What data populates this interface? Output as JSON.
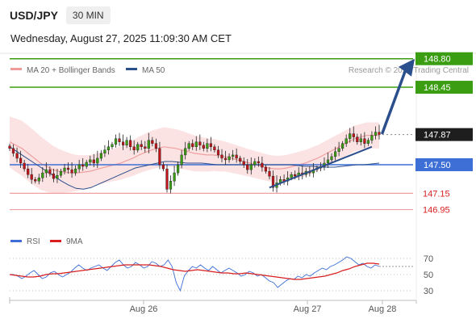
{
  "header": {
    "pair": "USD/JPY",
    "timeframe": "30 MIN",
    "datetime": "Wednesday, August 27, 2025 11:09:30 AM CET"
  },
  "legend": {
    "bollinger_label": "MA 20 + Bollinger Bands",
    "ma50_label": "MA 50",
    "copyright": "Research © 2025 Trading Central",
    "rsi_label": "RSI",
    "rsi_ma_label": "9MA"
  },
  "colors": {
    "green": "#3a9d12",
    "blue": "#3d6fd6",
    "navy": "#2a4f8c",
    "red": "#d81e1e",
    "light_red": "#f0a0a0",
    "band_fill": "#fbd9d9",
    "candle_up": "#3a9d12",
    "candle_down": "#c0141a"
  },
  "chart_data": [
    {
      "type": "candlestick",
      "title": "USD/JPY 30 MIN",
      "xlabel": "",
      "ylabel": "",
      "x_ticks": [
        "Aug 26",
        "Aug 27",
        "Aug 28"
      ],
      "ylim": [
        146.8,
        148.95
      ],
      "levels": [
        {
          "value": 148.8,
          "label": "148.80",
          "color": "#3a9d12",
          "style": "resistance"
        },
        {
          "value": 148.45,
          "label": "148.45",
          "color": "#3a9d12",
          "style": "resistance"
        },
        {
          "value": 147.87,
          "label": "147.87",
          "color": "#333333",
          "style": "last-price"
        },
        {
          "value": 147.5,
          "label": "147.50",
          "color": "#3d6fd6",
          "style": "pivot"
        },
        {
          "value": 147.15,
          "label": "147.15",
          "color": "#d81e1e",
          "style": "support"
        },
        {
          "value": 146.95,
          "label": "146.95",
          "color": "#d81e1e",
          "style": "support"
        }
      ],
      "closes": [
        147.7,
        147.64,
        147.58,
        147.52,
        147.45,
        147.38,
        147.32,
        147.3,
        147.34,
        147.4,
        147.44,
        147.39,
        147.33,
        147.37,
        147.42,
        147.46,
        147.44,
        147.4,
        147.45,
        147.5,
        147.48,
        147.53,
        147.56,
        147.52,
        147.58,
        147.64,
        147.68,
        147.72,
        147.75,
        147.82,
        147.78,
        147.74,
        147.8,
        147.72,
        147.68,
        147.75,
        147.72,
        147.7,
        147.8,
        147.76,
        147.7,
        147.5,
        147.45,
        147.2,
        147.3,
        147.4,
        147.5,
        147.62,
        147.7,
        147.76,
        147.72,
        147.78,
        147.74,
        147.7,
        147.76,
        147.72,
        147.68,
        147.62,
        147.58,
        147.56,
        147.6,
        147.62,
        147.58,
        147.54,
        147.5,
        147.44,
        147.5,
        147.54,
        147.52,
        147.47,
        147.42,
        147.36,
        147.22,
        147.28,
        147.32,
        147.3,
        147.34,
        147.38,
        147.36,
        147.4,
        147.38,
        147.42,
        147.4,
        147.44,
        147.46,
        147.48,
        147.52,
        147.56,
        147.6,
        147.66,
        147.7,
        147.76,
        147.82,
        147.88,
        147.84,
        147.78,
        147.82,
        147.76,
        147.8,
        147.86,
        147.9,
        147.87
      ],
      "moving_averages": {
        "ma20": [
          147.78,
          147.74,
          147.7,
          147.64,
          147.58,
          147.52,
          147.48,
          147.44,
          147.42,
          147.41,
          147.4,
          147.4,
          147.41,
          147.42,
          147.44,
          147.46,
          147.48,
          147.5,
          147.52,
          147.55,
          147.58,
          147.62,
          147.65,
          147.68,
          147.7,
          147.72,
          147.71,
          147.7,
          147.68,
          147.66,
          147.64,
          147.63,
          147.62,
          147.62,
          147.61,
          147.6,
          147.58,
          147.56,
          147.54,
          147.52,
          147.5,
          147.48,
          147.46,
          147.45,
          147.45,
          147.46,
          147.48,
          147.5,
          147.52,
          147.55,
          147.58,
          147.62,
          147.66,
          147.7,
          147.74,
          147.78,
          147.82,
          147.84,
          147.86,
          147.86,
          147.86
        ],
        "ma50": [
          147.72,
          147.66,
          147.6,
          147.54,
          147.48,
          147.42,
          147.36,
          147.3,
          147.25,
          147.21,
          147.2,
          147.22,
          147.26,
          147.3,
          147.34,
          147.38,
          147.42,
          147.46,
          147.48,
          147.5,
          147.52,
          147.54,
          147.54,
          147.53,
          147.52,
          147.52,
          147.52,
          147.51,
          147.5,
          147.5,
          147.5,
          147.5,
          147.5,
          147.5,
          147.5,
          147.5,
          147.5,
          147.5,
          147.5,
          147.49,
          147.48,
          147.48,
          147.47,
          147.47,
          147.47,
          147.48,
          147.49,
          147.5,
          147.5,
          147.51,
          147.52
        ]
      },
      "trendline": {
        "start": 147.22,
        "end": 147.72
      }
    },
    {
      "type": "line",
      "title": "RSI",
      "ylim": [
        20,
        80
      ],
      "y_ticks": [
        70,
        50,
        30
      ],
      "rsi": [
        50,
        50,
        48,
        45,
        48,
        52,
        55,
        50,
        45,
        47,
        52,
        54,
        50,
        47,
        50,
        53,
        58,
        62,
        58,
        55,
        58,
        60,
        62,
        58,
        55,
        60,
        65,
        68,
        62,
        58,
        60,
        65,
        62,
        58,
        60,
        66,
        64,
        60,
        62,
        68,
        60,
        40,
        30,
        48,
        55,
        60,
        58,
        62,
        58,
        55,
        60,
        56,
        52,
        55,
        58,
        55,
        52,
        48,
        50,
        54,
        52,
        48,
        50,
        46,
        42,
        40,
        34,
        38,
        42,
        45,
        44,
        48,
        46,
        50,
        48,
        52,
        55,
        58,
        56,
        60,
        62,
        65,
        68,
        72,
        70,
        66,
        62,
        64,
        60,
        58,
        62,
        60
      ],
      "rsi_ma": [
        50,
        49,
        48,
        47,
        47,
        48,
        50,
        51,
        51,
        52,
        53,
        54,
        55,
        56,
        57,
        58,
        59,
        60,
        61,
        62,
        62,
        62,
        62,
        62,
        61,
        60,
        58,
        56,
        55,
        54,
        55,
        56,
        55,
        54,
        53,
        52,
        52,
        51,
        51,
        52,
        51,
        50,
        49,
        48,
        47,
        46,
        45,
        44,
        44,
        45,
        46,
        47,
        48,
        50,
        52,
        55,
        57,
        60,
        62,
        64,
        64,
        63
      ]
    }
  ]
}
